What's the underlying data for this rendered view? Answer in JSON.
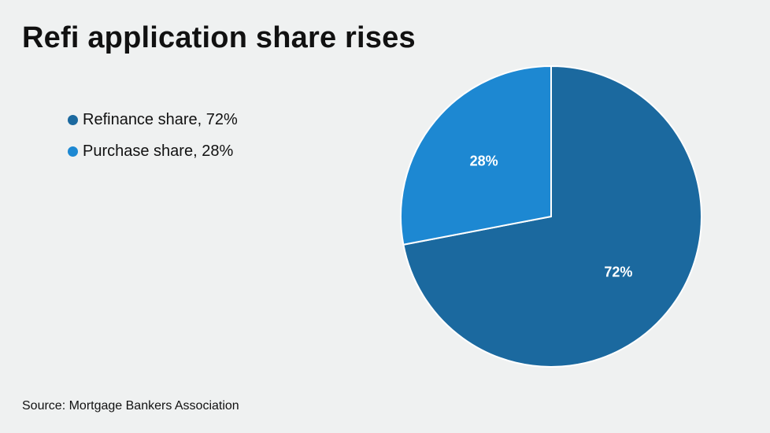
{
  "title": "Refi application share rises",
  "source": "Source: Mortgage Bankers Association",
  "legend": [
    {
      "label": "Refinance share, 72%",
      "color": "#1b699f"
    },
    {
      "label": "Purchase share, 28%",
      "color": "#1d88d2"
    }
  ],
  "chart_data": {
    "type": "pie",
    "title": "Refi application share rises",
    "categories": [
      "Refinance share",
      "Purchase share"
    ],
    "values": [
      72,
      28
    ],
    "unit": "%",
    "data_labels": [
      "72%",
      "28%"
    ],
    "colors": [
      "#1b699f",
      "#1d88d2"
    ],
    "start_angle_deg": 0,
    "direction": "clockwise",
    "legend_position": "left"
  }
}
